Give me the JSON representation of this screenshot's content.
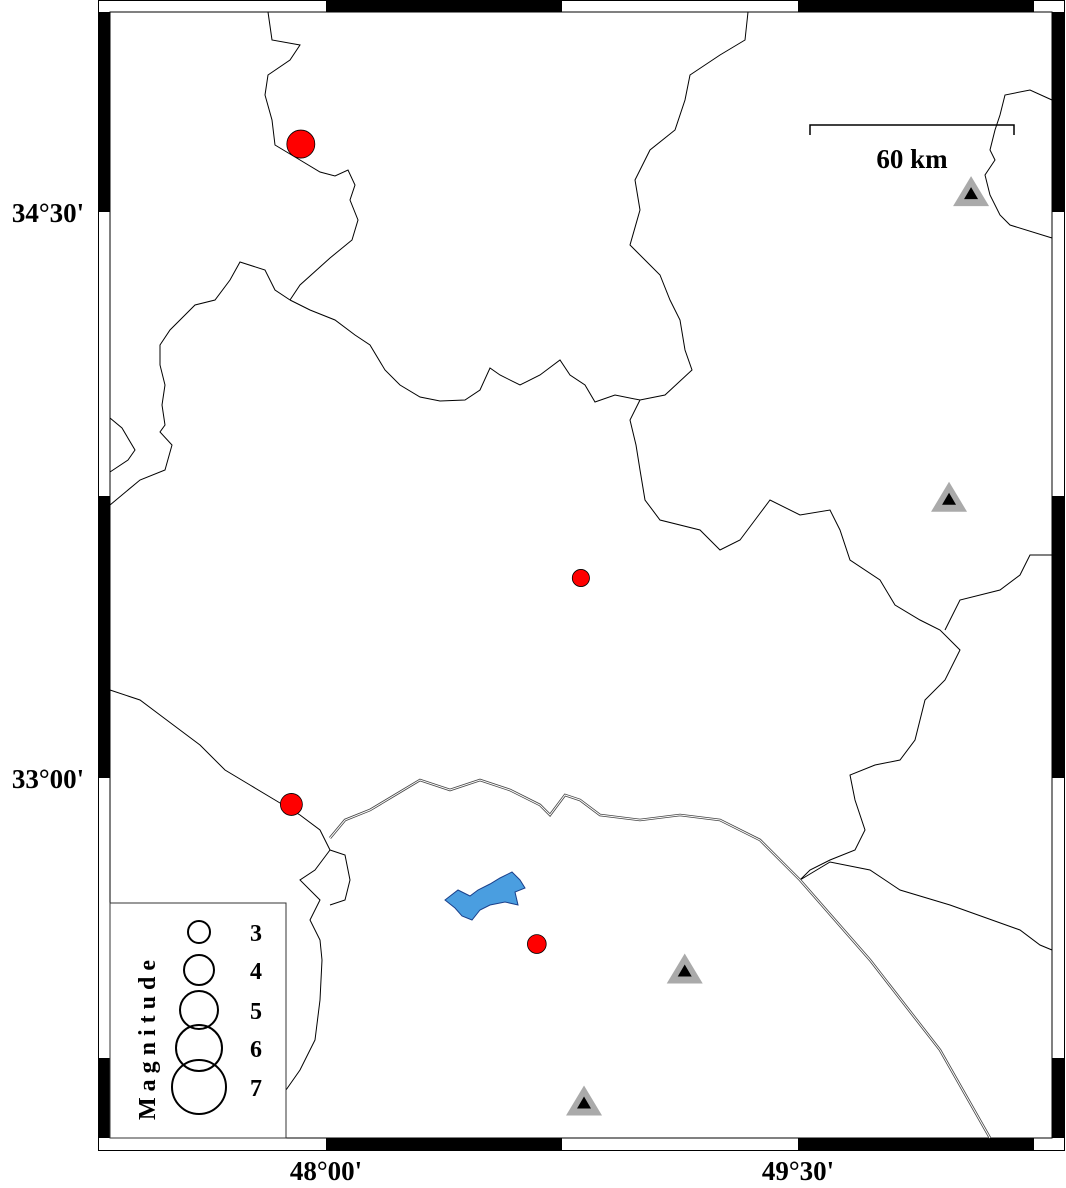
{
  "map": {
    "lon_labels": [
      "48°00'",
      "49°30'"
    ],
    "lat_labels": [
      "34°30'",
      "33°00'"
    ],
    "scale_bar": {
      "label": "60 km"
    },
    "legend": {
      "title": "Magnitude",
      "magnitudes": [
        "3",
        "4",
        "5",
        "6",
        "7"
      ]
    },
    "events": [
      {
        "lon": 47.92,
        "lat": 34.68,
        "mag": 3.75
      },
      {
        "lon": 48.81,
        "lat": 33.53,
        "mag": 2.4
      },
      {
        "lon": 47.89,
        "lat": 32.93,
        "mag": 3.0
      },
      {
        "lon": 48.67,
        "lat": 32.56,
        "mag": 2.6
      }
    ],
    "stations": [
      {
        "lon": 50.05,
        "lat": 34.55
      },
      {
        "lon": 49.98,
        "lat": 33.74
      },
      {
        "lon": 49.14,
        "lat": 32.49
      },
      {
        "lon": 48.82,
        "lat": 32.14
      }
    ],
    "colors": {
      "event": "#ff0000",
      "station_outer": "#aaaaaa",
      "station_inner": "#000000",
      "lake": "#4a9ee0",
      "boundary": "#000000"
    }
  }
}
